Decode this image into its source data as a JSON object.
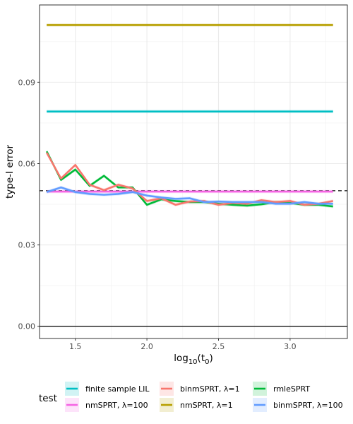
{
  "chart_data": {
    "type": "line",
    "xlabel_main": "log",
    "xlabel_sub": "10",
    "xlabel_paren": "(t",
    "xlabel_sub2": "0",
    "xlabel_close": ")",
    "ylabel": "type-I error",
    "xlim": [
      1.25,
      3.4
    ],
    "ylim": [
      -0.0045,
      0.1185
    ],
    "x_ticks": [
      1.5,
      2.0,
      2.5,
      3.0
    ],
    "x_tick_labels": [
      "1.5",
      "2.0",
      "2.5",
      "3.0"
    ],
    "y_ticks": [
      0.0,
      0.03,
      0.06,
      0.09
    ],
    "y_tick_labels": [
      "0.00",
      "0.03",
      "0.06",
      "0.09"
    ],
    "grid": true,
    "reference_lines": [
      {
        "y": 0.0,
        "style": "solid",
        "color": "#000000"
      },
      {
        "y": 0.05,
        "style": "dashed",
        "color": "#000000"
      }
    ],
    "legend_title": "test",
    "legend_position": "bottom",
    "series": [
      {
        "name": "finite sample LIL",
        "color": "#00BFC4",
        "x": [
          1.3,
          3.3
        ],
        "y": [
          0.0792,
          0.0792
        ]
      },
      {
        "name": "nmSPRT, λ=1",
        "color": "#B79F00",
        "x": [
          1.3,
          3.3
        ],
        "y": [
          0.1111,
          0.1111
        ]
      },
      {
        "name": "nmSPRT, λ=100",
        "color": "#F564E3",
        "x": [
          1.3,
          3.3
        ],
        "y": [
          0.0497,
          0.0497
        ]
      },
      {
        "name": "rmleSPRT",
        "color": "#00BA38",
        "x": [
          1.3,
          1.4,
          1.5,
          1.6,
          1.7,
          1.8,
          1.9,
          2.0,
          2.1,
          2.2,
          2.3,
          2.4,
          2.5,
          2.6,
          2.7,
          2.8,
          2.9,
          3.0,
          3.1,
          3.2,
          3.3
        ],
        "y": [
          0.0645,
          0.054,
          0.0578,
          0.0518,
          0.0555,
          0.0512,
          0.0512,
          0.0448,
          0.0468,
          0.0462,
          0.0458,
          0.0458,
          0.0452,
          0.0448,
          0.0445,
          0.045,
          0.0458,
          0.0455,
          0.0448,
          0.0448,
          0.0442
        ]
      },
      {
        "name": "binmSPRT, λ=1",
        "color": "#F8766D",
        "x": [
          1.3,
          1.4,
          1.5,
          1.6,
          1.7,
          1.8,
          1.9,
          2.0,
          2.1,
          2.2,
          2.3,
          2.4,
          2.5,
          2.6,
          2.7,
          2.8,
          2.9,
          3.0,
          3.1,
          3.2,
          3.3
        ],
        "y": [
          0.064,
          0.0545,
          0.0595,
          0.0522,
          0.0502,
          0.0522,
          0.0508,
          0.0462,
          0.0472,
          0.0448,
          0.046,
          0.0462,
          0.0448,
          0.0455,
          0.0452,
          0.0465,
          0.0458,
          0.0462,
          0.0448,
          0.0452,
          0.0462
        ]
      },
      {
        "name": "binmSPRT, λ=100",
        "color": "#619CFF",
        "x": [
          1.3,
          1.4,
          1.5,
          1.6,
          1.7,
          1.8,
          1.9,
          2.0,
          2.1,
          2.2,
          2.3,
          2.4,
          2.5,
          2.6,
          2.7,
          2.8,
          2.9,
          3.0,
          3.1,
          3.2,
          3.3
        ],
        "y": [
          0.0495,
          0.0512,
          0.0495,
          0.0488,
          0.0485,
          0.0488,
          0.0495,
          0.0482,
          0.0475,
          0.047,
          0.0472,
          0.0458,
          0.046,
          0.0458,
          0.0458,
          0.0458,
          0.0452,
          0.0452,
          0.0458,
          0.0452,
          0.0452
        ]
      }
    ],
    "legend_order": [
      0,
      2,
      4,
      1,
      3,
      5
    ]
  }
}
